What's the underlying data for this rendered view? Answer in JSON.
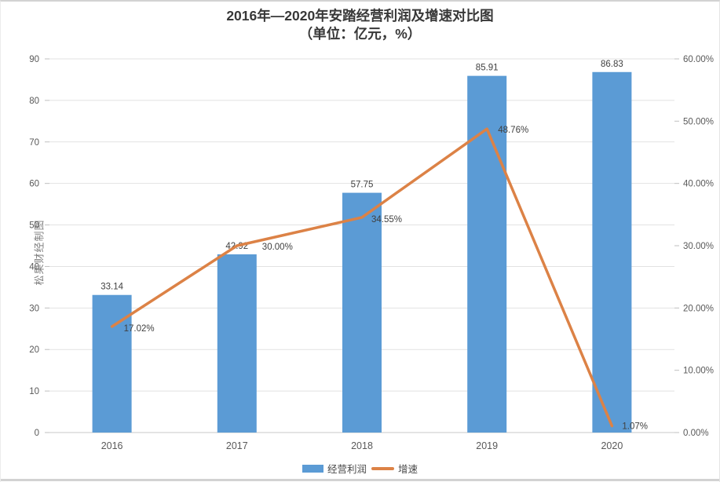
{
  "title": {
    "line1": "2016年—2020年安踏经营利润及增速对比图",
    "line2": "（单位：亿元，%）"
  },
  "watermark": "松果财经制图",
  "legend": {
    "bar_label": "经营利润",
    "line_label": "增速"
  },
  "colors": {
    "bar": "#5B9BD5",
    "line": "#DC8246",
    "grid": "#E2E2E2",
    "axis_line": "#C9C9C9",
    "tick": "#BFBFBF",
    "axis_text": "#595959",
    "label_text": "#404040"
  },
  "chart_data": {
    "type": "bar",
    "subtype": "bar+line combo",
    "title": "2016年—2020年安踏经营利润及增速对比图（单位：亿元，%）",
    "categories": [
      "2016",
      "2017",
      "2018",
      "2019",
      "2020"
    ],
    "series": [
      {
        "name": "经营利润",
        "type": "bar",
        "axis": "left",
        "values": [
          33.14,
          42.92,
          57.75,
          85.91,
          86.83
        ],
        "labels": [
          "33.14",
          "42.92",
          "57.75",
          "85.91",
          "86.83"
        ]
      },
      {
        "name": "增速",
        "type": "line",
        "axis": "right",
        "values": [
          17.02,
          30.0,
          34.55,
          48.76,
          1.07
        ],
        "labels": [
          "17.02%",
          "30.00%",
          "34.55%",
          "48.76%",
          "1.07%"
        ]
      }
    ],
    "left_axis": {
      "min": 0,
      "max": 90,
      "step": 10,
      "tick_labels": [
        "0",
        "10",
        "20",
        "30",
        "40",
        "50",
        "60",
        "70",
        "80",
        "90"
      ]
    },
    "right_axis": {
      "min": 0,
      "max": 60,
      "step": 10,
      "tick_labels": [
        "0.00%",
        "10.00%",
        "20.00%",
        "30.00%",
        "40.00%",
        "50.00%",
        "60.00%"
      ]
    },
    "grid": true,
    "legend_position": "bottom"
  }
}
